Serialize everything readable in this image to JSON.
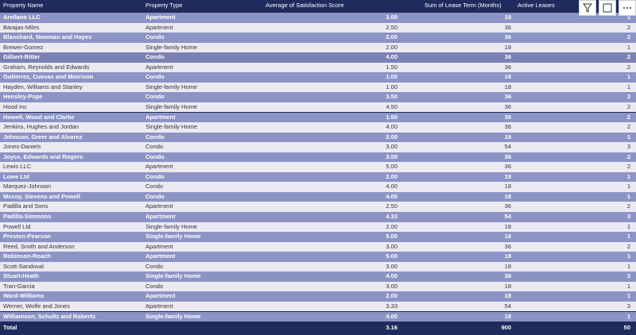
{
  "header": {
    "columns": [
      "Property Name",
      "Property Type",
      "Average of Satisfaction Score",
      "Sum of Lease Term (Months)",
      "Active Leases"
    ]
  },
  "table": {
    "rows": [
      [
        "Arellano LLC",
        "Apartment",
        "3.00",
        "18",
        "1"
      ],
      [
        "Barajas-Miles",
        "Apartment",
        "2.50",
        "36",
        "2"
      ],
      [
        "Blanchard, Newman and Hayes",
        "Condo",
        "2.00",
        "36",
        "2"
      ],
      [
        "Brewer-Gomez",
        "Single-family Home",
        "2.00",
        "18",
        "1"
      ],
      [
        "Gilbert-Ritter",
        "Condo",
        "4.00",
        "36",
        "2"
      ],
      [
        "Graham, Reynolds and Edwards",
        "Apartment",
        "1.50",
        "36",
        "2"
      ],
      [
        "Gutierrez, Cuevas and Morrison",
        "Condo",
        "1.00",
        "18",
        "1"
      ],
      [
        "Hayden, Williams and Stanley",
        "Single-family Home",
        "1.00",
        "18",
        "1"
      ],
      [
        "Hensley-Pope",
        "Condo",
        "3.50",
        "36",
        "2"
      ],
      [
        "Hood Inc",
        "Single-family Home",
        "4.50",
        "36",
        "2"
      ],
      [
        "Howell, Wood and Clarke",
        "Apartment",
        "1.50",
        "36",
        "2"
      ],
      [
        "Jenkins, Hughes and Jordan",
        "Single-family Home",
        "4.00",
        "36",
        "2"
      ],
      [
        "Johnson, Greer and Alvarez",
        "Condo",
        "2.00",
        "18",
        "1"
      ],
      [
        "Jones-Daniels",
        "Condo",
        "3.00",
        "54",
        "3"
      ],
      [
        "Joyce, Edwards and Rogers",
        "Condo",
        "3.50",
        "36",
        "2"
      ],
      [
        "Lewis LLC",
        "Apartment",
        "5.00",
        "36",
        "2"
      ],
      [
        "Lowe Ltd",
        "Condo",
        "2.00",
        "18",
        "1"
      ],
      [
        "Marquez-Johnson",
        "Condo",
        "4.00",
        "18",
        "1"
      ],
      [
        "Mccoy, Stevens and Powell",
        "Condo",
        "4.00",
        "18",
        "1"
      ],
      [
        "Padilla and Sons",
        "Apartment",
        "2.50",
        "36",
        "2"
      ],
      [
        "Padilla-Simmons",
        "Apartment",
        "4.33",
        "54",
        "3"
      ],
      [
        "Powell Ltd",
        "Single-family Home",
        "2.00",
        "18",
        "1"
      ],
      [
        "Preston-Pearson",
        "Single-family Home",
        "5.00",
        "18",
        "1"
      ],
      [
        "Reed, Smith and Anderson",
        "Apartment",
        "3.00",
        "36",
        "2"
      ],
      [
        "Robinson-Roach",
        "Apartment",
        "5.00",
        "18",
        "1"
      ],
      [
        "Scott-Sandoval",
        "Condo",
        "3.00",
        "18",
        "1"
      ],
      [
        "Stuart-Heath",
        "Single-family Home",
        "4.00",
        "36",
        "2"
      ],
      [
        "Tran-Garcia",
        "Condo",
        "3.00",
        "18",
        "1"
      ],
      [
        "Ward-Williams",
        "Apartment",
        "2.00",
        "18",
        "1"
      ],
      [
        "Werner, Wolfe and Jones",
        "Apartment",
        "3.33",
        "54",
        "3"
      ],
      [
        "Williamson, Schultz and Roberts",
        "Single-family Home",
        "4.00",
        "18",
        "1"
      ]
    ],
    "total": [
      "Total",
      "",
      "3.16",
      "900",
      "50"
    ]
  }
}
